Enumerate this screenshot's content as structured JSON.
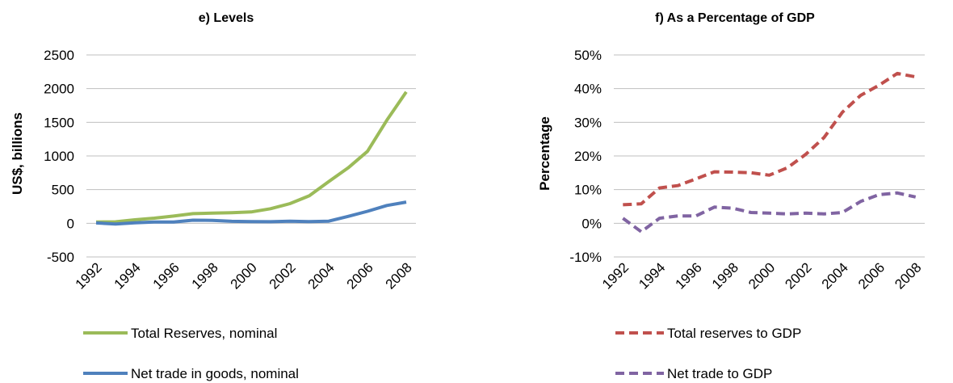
{
  "chart_data": [
    {
      "type": "line",
      "title": "e) Levels",
      "xlabel": "",
      "ylabel": "US$, billions",
      "ylim": [
        -500,
        2500
      ],
      "yticks": [
        "-500",
        "0",
        "500",
        "1000",
        "1500",
        "2000",
        "2500"
      ],
      "x": [
        1992,
        1993,
        1994,
        1995,
        1996,
        1997,
        1998,
        1999,
        2000,
        2001,
        2002,
        2003,
        2004,
        2005,
        2006,
        2007,
        2008
      ],
      "xticks": [
        "1992",
        "1994",
        "1996",
        "1998",
        "2000",
        "2002",
        "2004",
        "2006",
        "2008"
      ],
      "grid": "horizontal",
      "legend_position": "bottom",
      "series": [
        {
          "name": "Total Reserves, nominal",
          "color": "#9BBB59",
          "dash": "solid",
          "values": [
            20,
            22,
            52,
            76,
            107,
            143,
            150,
            158,
            168,
            216,
            292,
            409,
            619,
            822,
            1069,
            1530,
            1950
          ]
        },
        {
          "name": "Net trade in goods, nominal",
          "color": "#4F81BD",
          "dash": "solid",
          "values": [
            5,
            -11,
            7,
            18,
            20,
            46,
            44,
            29,
            24,
            23,
            30,
            25,
            32,
            102,
            178,
            264,
            315
          ]
        }
      ]
    },
    {
      "type": "line",
      "title": "f) As a Percentage of GDP",
      "xlabel": "",
      "ylabel": "Percentage",
      "ylim": [
        -10,
        50
      ],
      "yticks": [
        "-10%",
        "0%",
        "10%",
        "20%",
        "30%",
        "40%",
        "50%"
      ],
      "x": [
        1992,
        1993,
        1994,
        1995,
        1996,
        1997,
        1998,
        1999,
        2000,
        2001,
        2002,
        2003,
        2004,
        2005,
        2006,
        2007,
        2008
      ],
      "xticks": [
        "1992",
        "1994",
        "1996",
        "1998",
        "2000",
        "2002",
        "2004",
        "2006",
        "2008"
      ],
      "grid": "horizontal",
      "legend_position": "bottom",
      "series": [
        {
          "name": "Total reserves to GDP",
          "color": "#C0504D",
          "dash": "dashed",
          "values": [
            5.5,
            5.8,
            10.5,
            11.2,
            13.2,
            15.3,
            15.2,
            15.0,
            14.3,
            16.5,
            20.5,
            25.5,
            33.0,
            38.0,
            41.0,
            44.5,
            43.5
          ]
        },
        {
          "name": "Net trade to GDP",
          "color": "#8064A2",
          "dash": "dashed",
          "values": [
            1.5,
            -2.5,
            1.5,
            2.2,
            2.2,
            4.8,
            4.5,
            3.2,
            3.0,
            2.8,
            3.0,
            2.8,
            3.2,
            6.5,
            8.5,
            9.0,
            7.8
          ]
        }
      ]
    }
  ]
}
